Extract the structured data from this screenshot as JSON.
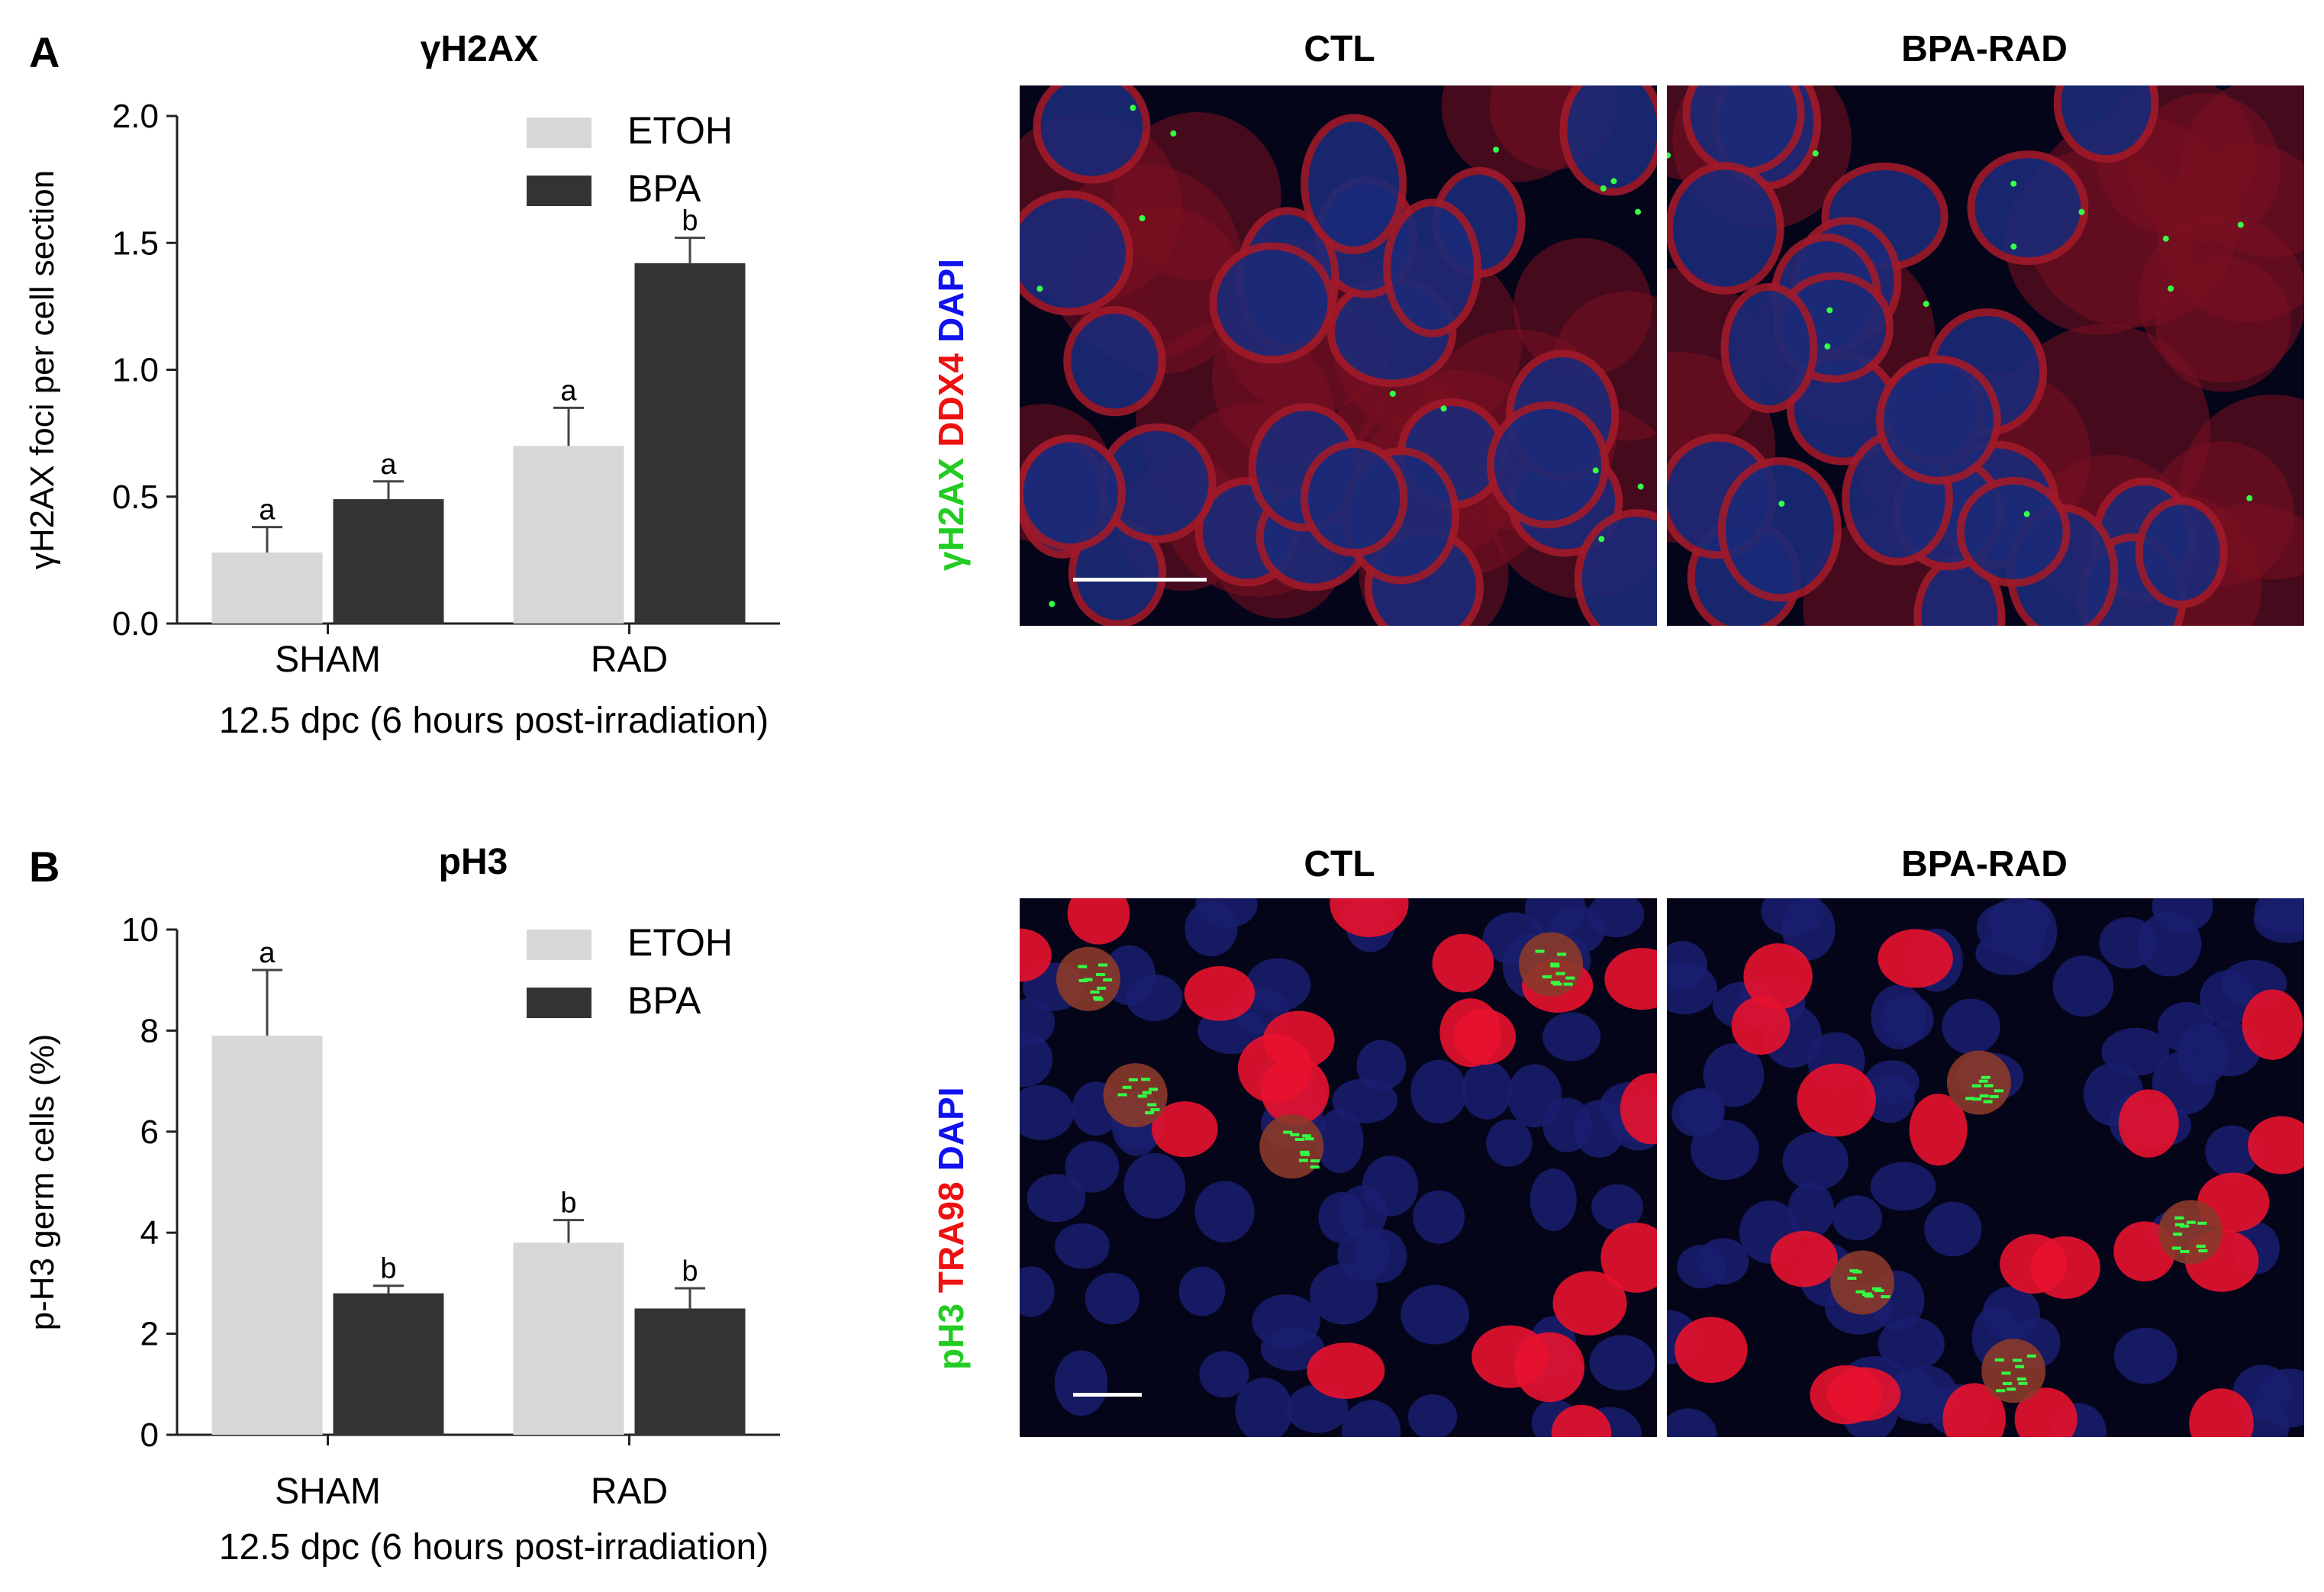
{
  "panels": [
    {
      "letter": "A",
      "title": "γH2AX",
      "micrographs": [
        {
          "label": "CTL"
        },
        {
          "label": "BPA-RAD"
        }
      ],
      "stain_labels": [
        {
          "text": "γH2AX",
          "color": "#22cc22"
        },
        {
          "text": "DDX4",
          "color": "#ee1111"
        },
        {
          "text": "DAPI",
          "color": "#1111ee"
        }
      ]
    },
    {
      "letter": "B",
      "title": "pH3",
      "micrographs": [
        {
          "label": "CTL"
        },
        {
          "label": "BPA-RAD"
        }
      ],
      "stain_labels": [
        {
          "text": "pH3",
          "color": "#22cc22"
        },
        {
          "text": "TRA98",
          "color": "#ee1111"
        },
        {
          "text": "DAPI",
          "color": "#1111ee"
        }
      ]
    }
  ],
  "colors": {
    "etoh": "#d7d7d7",
    "bpa": "#333333"
  },
  "chart_data": [
    {
      "type": "bar",
      "title": "γH2AX",
      "categories": [
        "SHAM",
        "RAD"
      ],
      "xlabel": "12.5 dpc (6 hours post-irradiation)",
      "ylabel": "γH2AX foci per cell section",
      "ylim": [
        0,
        2.0
      ],
      "yticks": [
        "0.0",
        "0.5",
        "1.0",
        "1.5",
        "2.0"
      ],
      "legend_position": "top-right",
      "series": [
        {
          "name": "ETOH",
          "values": [
            0.28,
            0.7
          ],
          "errors": [
            0.1,
            0.15
          ],
          "letters": [
            "a",
            "a"
          ]
        },
        {
          "name": "BPA",
          "values": [
            0.49,
            1.42
          ],
          "errors": [
            0.07,
            0.1
          ],
          "letters": [
            "a",
            "b"
          ]
        }
      ]
    },
    {
      "type": "bar",
      "title": "pH3",
      "categories": [
        "SHAM",
        "RAD"
      ],
      "xlabel": "12.5 dpc (6 hours post-irradiation)",
      "ylabel": "p-H3 germ cells (%)",
      "ylim": [
        0,
        10
      ],
      "yticks": [
        "0",
        "2",
        "4",
        "6",
        "8",
        "10"
      ],
      "legend_position": "top-right",
      "series": [
        {
          "name": "ETOH",
          "values": [
            7.9,
            3.8
          ],
          "errors": [
            1.3,
            0.45
          ],
          "letters": [
            "a",
            "b"
          ]
        },
        {
          "name": "BPA",
          "values": [
            2.8,
            2.5
          ],
          "errors": [
            0.15,
            0.4
          ],
          "letters": [
            "b",
            "b"
          ]
        }
      ]
    }
  ]
}
